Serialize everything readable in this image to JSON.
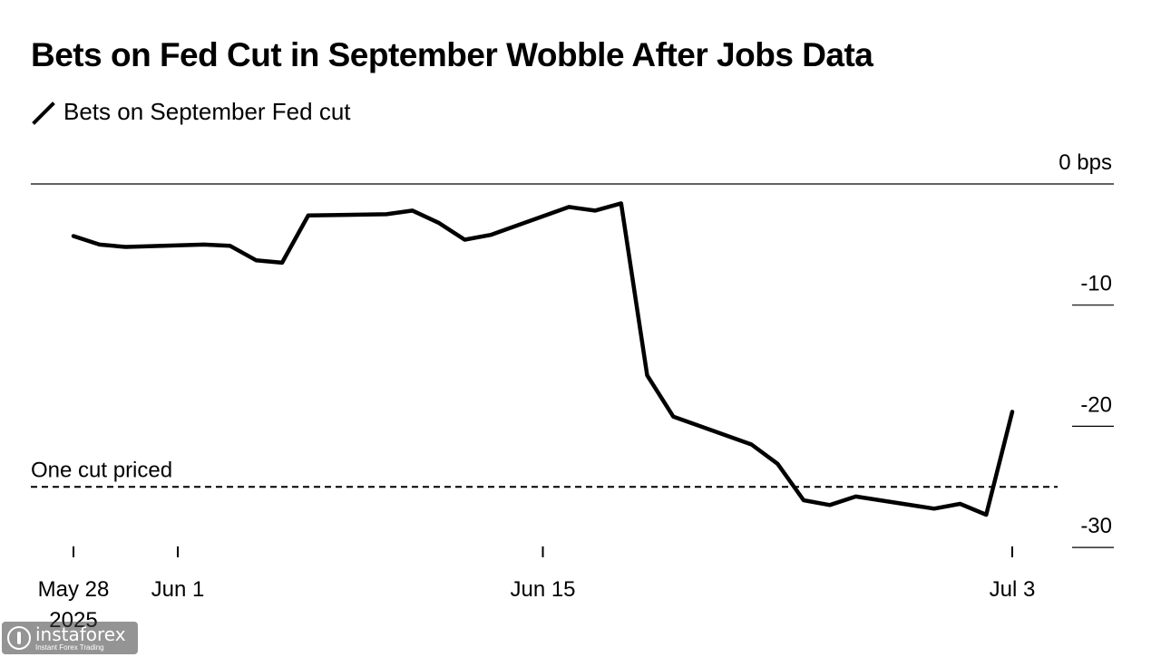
{
  "chart_data": {
    "type": "line",
    "title": "Bets on Fed Cut in September Wobble After Jobs Data",
    "subtitle": "",
    "xlabel": "",
    "ylabel": "",
    "y_unit_label": "0 bps",
    "ylim": [
      -31,
      0
    ],
    "yticks": [
      0,
      -10,
      -20,
      -30
    ],
    "ytick_labels": [
      "0 bps",
      "-10",
      "-20",
      "-30"
    ],
    "xticks": [
      {
        "x": "2025-05-28",
        "label": "May 28",
        "sublabel": "2025"
      },
      {
        "x": "2025-06-01",
        "label": "Jun 1",
        "sublabel": ""
      },
      {
        "x": "2025-06-15",
        "label": "Jun 15",
        "sublabel": ""
      },
      {
        "x": "2025-07-03",
        "label": "Jul 3",
        "sublabel": ""
      }
    ],
    "grid": false,
    "legend_position": "top-left",
    "series": [
      {
        "name": "Bets on September Fed cut",
        "color": "#000000",
        "points": [
          [
            "2025-05-28",
            -4.3
          ],
          [
            "2025-05-29",
            -5.0
          ],
          [
            "2025-05-30",
            -5.2
          ],
          [
            "2025-06-02",
            -5.0
          ],
          [
            "2025-06-03",
            -5.1
          ],
          [
            "2025-06-04",
            -6.3
          ],
          [
            "2025-06-05",
            -6.5
          ],
          [
            "2025-06-06",
            -2.6
          ],
          [
            "2025-06-09",
            -2.5
          ],
          [
            "2025-06-10",
            -2.2
          ],
          [
            "2025-06-11",
            -3.2
          ],
          [
            "2025-06-12",
            -4.6
          ],
          [
            "2025-06-13",
            -4.2
          ],
          [
            "2025-06-16",
            -1.9
          ],
          [
            "2025-06-17",
            -2.2
          ],
          [
            "2025-06-18",
            -1.6
          ],
          [
            "2025-06-19",
            -15.8
          ],
          [
            "2025-06-20",
            -19.2
          ],
          [
            "2025-06-23",
            -21.5
          ],
          [
            "2025-06-24",
            -23.1
          ],
          [
            "2025-06-25",
            -26.1
          ],
          [
            "2025-06-26",
            -26.5
          ],
          [
            "2025-06-27",
            -25.8
          ],
          [
            "2025-06-30",
            -26.8
          ],
          [
            "2025-07-01",
            -26.4
          ],
          [
            "2025-07-02",
            -27.3
          ],
          [
            "2025-07-03",
            -18.8
          ]
        ]
      }
    ],
    "reference_line": {
      "label": "One cut priced",
      "y": -25,
      "style": "dashed"
    }
  },
  "watermark": {
    "name": "instaforex",
    "tagline": "Instant Forex Trading"
  },
  "colors": {
    "line": "#000000",
    "background": "#ffffff"
  }
}
